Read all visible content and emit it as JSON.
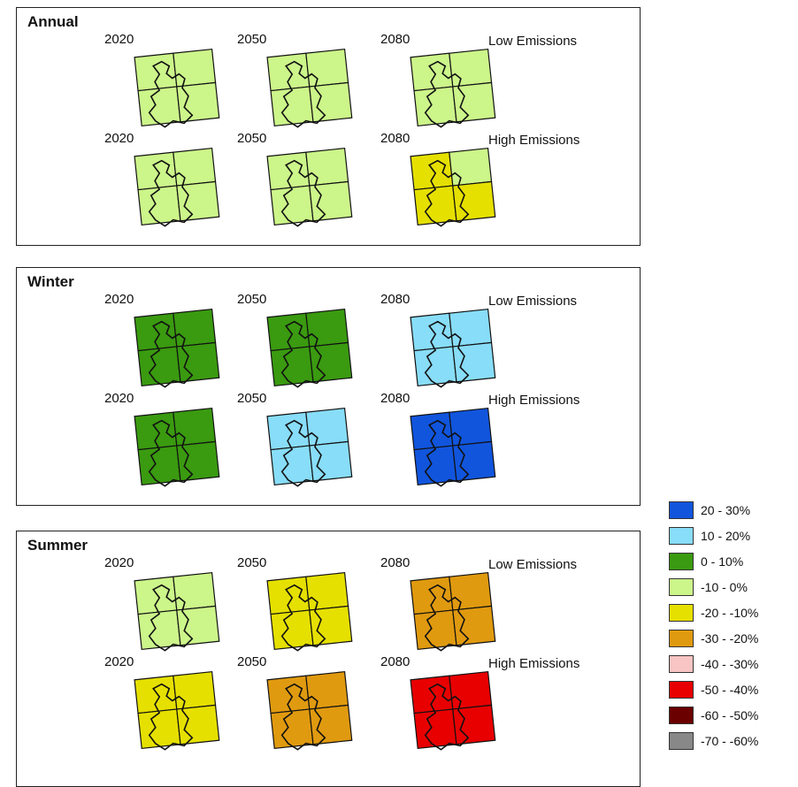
{
  "panels": [
    {
      "title": "Annual",
      "rows": [
        {
          "scenario": "Low Emissions",
          "maps": [
            {
              "year": "2020",
              "cls": "-10 - 0%"
            },
            {
              "year": "2050",
              "cls": "-10 - 0%"
            },
            {
              "year": "2080",
              "cls": "-10 - 0%"
            }
          ]
        },
        {
          "scenario": "High Emissions",
          "maps": [
            {
              "year": "2020",
              "cls": "-10 - 0%"
            },
            {
              "year": "2050",
              "cls": "-10 - 0%"
            },
            {
              "year": "2080",
              "cls": "-20 - -10%",
              "split": "-10 - 0%"
            }
          ]
        }
      ]
    },
    {
      "title": "Winter",
      "rows": [
        {
          "scenario": "Low Emissions",
          "maps": [
            {
              "year": "2020",
              "cls": "0 - 10%"
            },
            {
              "year": "2050",
              "cls": "0 - 10%"
            },
            {
              "year": "2080",
              "cls": "10 - 20%"
            }
          ]
        },
        {
          "scenario": "High Emissions",
          "maps": [
            {
              "year": "2020",
              "cls": "0 - 10%"
            },
            {
              "year": "2050",
              "cls": "10 - 20%"
            },
            {
              "year": "2080",
              "cls": "20 - 30%"
            }
          ]
        }
      ]
    },
    {
      "title": "Summer",
      "rows": [
        {
          "scenario": "Low Emissions",
          "maps": [
            {
              "year": "2020",
              "cls": "-10 - 0%"
            },
            {
              "year": "2050",
              "cls": "-20 - -10%"
            },
            {
              "year": "2080",
              "cls": "-30 - -20%"
            }
          ]
        },
        {
          "scenario": "High Emissions",
          "maps": [
            {
              "year": "2020",
              "cls": "-20 - -10%"
            },
            {
              "year": "2050",
              "cls": "-30 - -20%"
            },
            {
              "year": "2080",
              "cls": "-50 - -40%"
            }
          ]
        }
      ]
    }
  ],
  "legend": [
    {
      "label": "20 - 30%",
      "color": "#1155dd"
    },
    {
      "label": "10 - 20%",
      "color": "#88ddf8"
    },
    {
      "label": "0 - 10%",
      "color": "#3a9a10"
    },
    {
      "label": "-10 - 0%",
      "color": "#ccf58a"
    },
    {
      "label": "-20 - -10%",
      "color": "#e6e000"
    },
    {
      "label": "-30 - -20%",
      "color": "#e09a10"
    },
    {
      "label": "-40 - -30%",
      "color": "#f8c4c4"
    },
    {
      "label": "-50 - -40%",
      "color": "#e80000"
    },
    {
      "label": "-60 - -50%",
      "color": "#6a0000"
    },
    {
      "label": "-70 - -60%",
      "color": "#888888"
    }
  ]
}
